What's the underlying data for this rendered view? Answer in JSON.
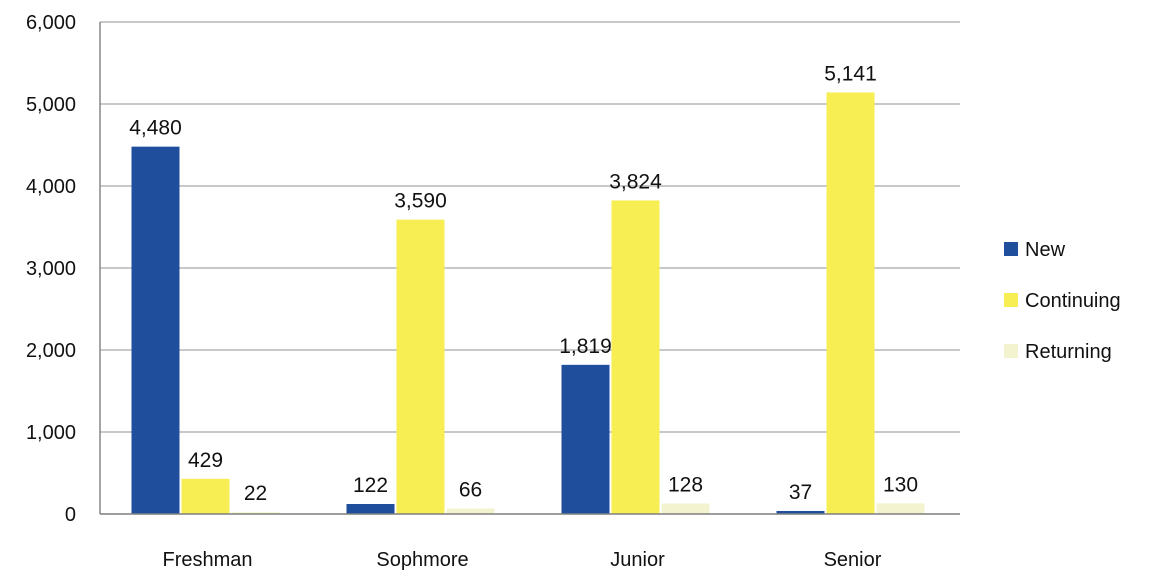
{
  "chart_data": {
    "type": "bar",
    "title": "",
    "xlabel": "",
    "ylabel": "",
    "categories": [
      "Freshman",
      "Sophmore",
      "Junior",
      "Senior"
    ],
    "series": [
      {
        "name": "New",
        "values": [
          4480,
          122,
          1819,
          37
        ],
        "labels": [
          "4,480",
          "122",
          "1,819",
          "37"
        ],
        "color": "#1f4e9c"
      },
      {
        "name": "Continuing",
        "values": [
          429,
          3590,
          3824,
          5141
        ],
        "labels": [
          "429",
          "3,590",
          "3,824",
          "5,141"
        ],
        "color": "#f6ee52"
      },
      {
        "name": "Returning",
        "values": [
          22,
          66,
          128,
          130
        ],
        "labels": [
          "22",
          "66",
          "128",
          "130"
        ],
        "color": "#f4f3cf"
      }
    ],
    "ylim": [
      0,
      6000
    ],
    "yticks": [
      0,
      1000,
      2000,
      3000,
      4000,
      5000,
      6000
    ],
    "ytick_labels": [
      "0",
      "1,000",
      "2,000",
      "3,000",
      "4,000",
      "5,000",
      "6,000"
    ],
    "grid": true,
    "legend_position": "right"
  }
}
